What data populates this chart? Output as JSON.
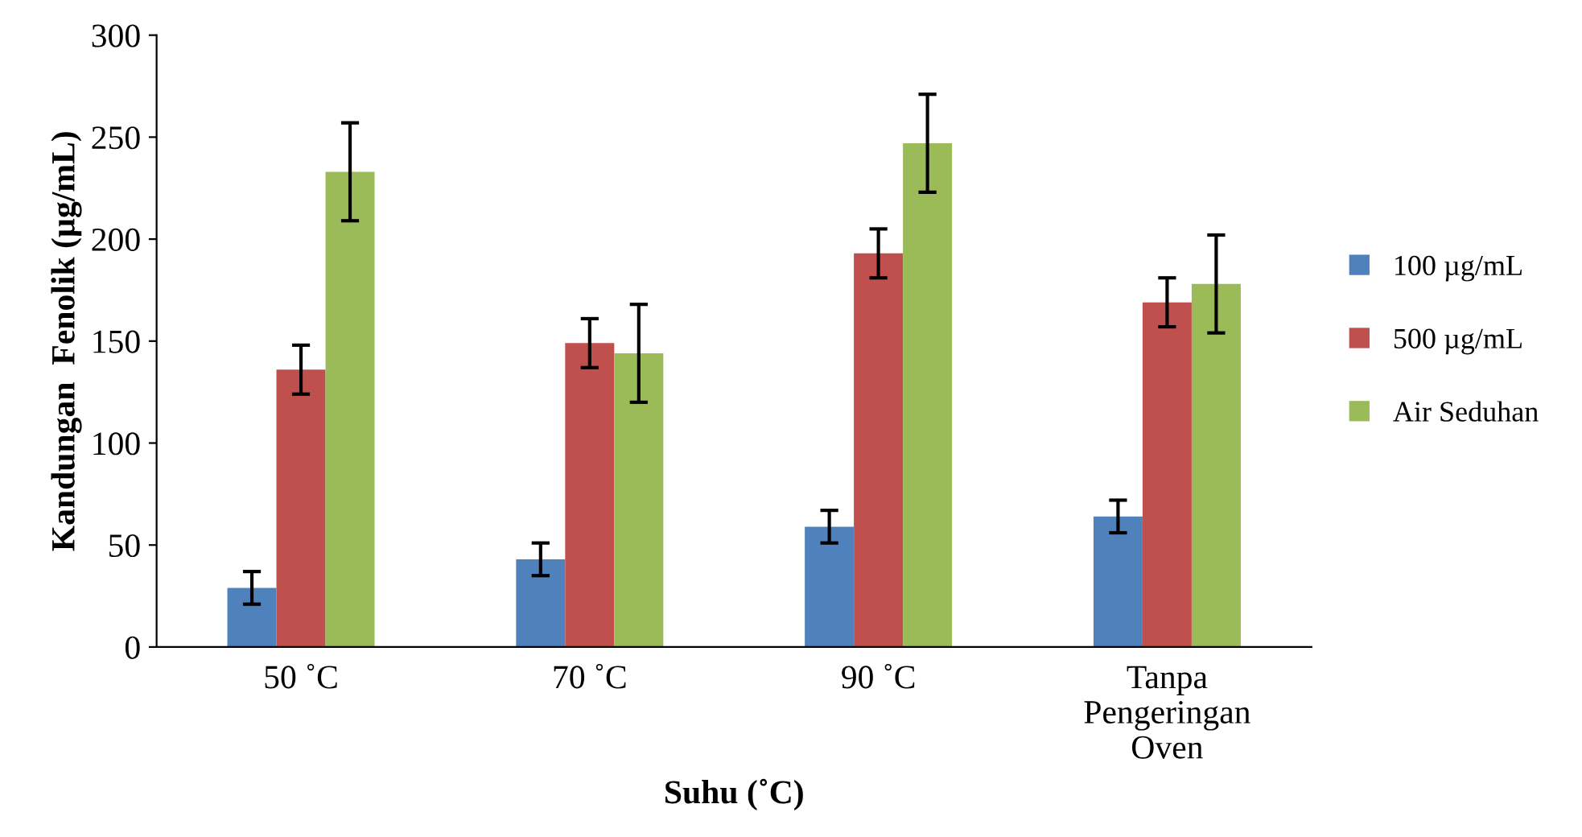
{
  "chart_data": {
    "type": "bar",
    "xlabel": "Suhu (˚C)",
    "ylabel": "Kandungan  Fenolik (µg/mL)",
    "categories": [
      "50 ˚C",
      "70 ˚C",
      "90 ˚C",
      "Tanpa\nPengeringan\nOven"
    ],
    "series": [
      {
        "name": "100 µg/mL",
        "color": "#4f81bd",
        "values": [
          29,
          43,
          59,
          64
        ],
        "errors": [
          8,
          8,
          8,
          8
        ]
      },
      {
        "name": "500 µg/mL",
        "color": "#c0504d",
        "values": [
          136,
          149,
          193,
          169
        ],
        "errors": [
          12,
          12,
          12,
          12
        ]
      },
      {
        "name": "Air Seduhan",
        "color": "#9bbb59",
        "values": [
          233,
          144,
          247,
          178
        ],
        "errors": [
          24,
          24,
          24,
          24
        ]
      }
    ],
    "ylim": [
      0,
      300
    ],
    "yticks": [
      0,
      50,
      100,
      150,
      200,
      250,
      300
    ],
    "grid": false,
    "legend": "right"
  }
}
